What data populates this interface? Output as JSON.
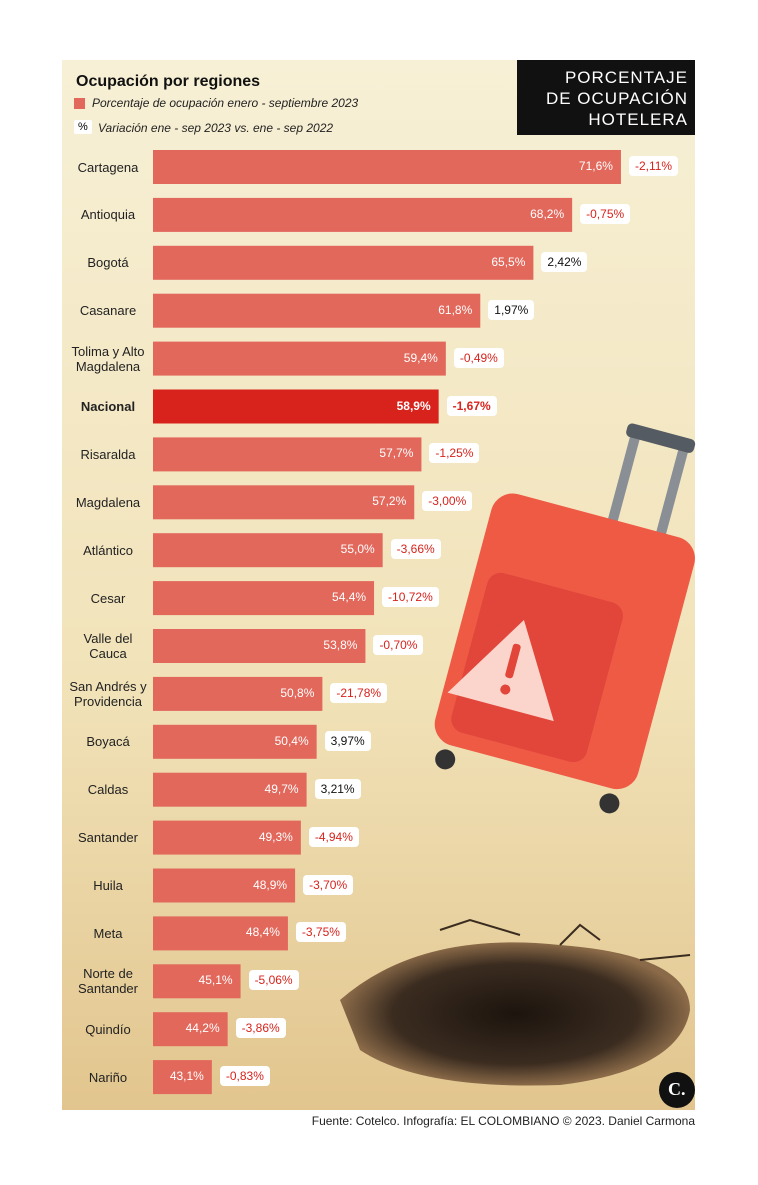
{
  "chart_data": {
    "type": "bar",
    "orientation": "horizontal",
    "title": "Ocupación por regiones",
    "heading": [
      "PORCENTAJE",
      "DE OCUPACIÓN",
      "HOTELERA"
    ],
    "legend": {
      "bar": "Porcentaje de ocupación enero - septiembre 2023",
      "badge": "%",
      "variation": "Variación ene - sep 2023 vs. ene - sep 2022"
    },
    "categories": [
      "Cartagena",
      "Antioquia",
      "Bogotá",
      "Casanare",
      "Tolima y Alto Magdalena",
      "Nacional",
      "Risaralda",
      "Magdalena",
      "Atlántico",
      "Cesar",
      "Valle del Cauca",
      "San Andrés y Providencia",
      "Boyacá",
      "Caldas",
      "Santander",
      "Huila",
      "Meta",
      "Norte de Santander",
      "Quindío",
      "Nariño"
    ],
    "values": [
      71.6,
      68.2,
      65.5,
      61.8,
      59.4,
      58.9,
      57.7,
      57.2,
      55.0,
      54.4,
      53.8,
      50.8,
      50.4,
      49.7,
      49.3,
      48.9,
      48.4,
      45.1,
      44.2,
      43.1
    ],
    "value_labels": [
      "71,6%",
      "68,2%",
      "65,5%",
      "61,8%",
      "59,4%",
      "58,9%",
      "57,7%",
      "57,2%",
      "55,0%",
      "54,4%",
      "53,8%",
      "50,8%",
      "50,4%",
      "49,7%",
      "49,3%",
      "48,9%",
      "48,4%",
      "45,1%",
      "44,2%",
      "43,1%"
    ],
    "colors": [
      "#e2685c",
      "#e2685c",
      "#e2685c",
      "#e2685c",
      "#e2685c",
      "#d8231c",
      "#e2685c",
      "#e2685c",
      "#e2685c",
      "#e2685c",
      "#e2685c",
      "#e2685c",
      "#e2685c",
      "#e2685c",
      "#e2685c",
      "#e2685c",
      "#e2685c",
      "#e2685c",
      "#e2685c",
      "#e2685c"
    ],
    "variation": {
      "values": [
        -2.11,
        -0.75,
        2.42,
        1.97,
        -0.49,
        -1.67,
        -1.25,
        -3.0,
        -3.66,
        -10.72,
        -0.7,
        -21.78,
        3.97,
        3.21,
        -4.94,
        -3.7,
        -3.75,
        -5.06,
        -3.86,
        -0.83
      ],
      "value_labels": [
        "-2,11%",
        "-0,75%",
        "2,42%",
        "1,97%",
        "-0,49%",
        "-1,67%",
        "-1,25%",
        "-3,00%",
        "-3,66%",
        "-10,72%",
        "-0,70%",
        "-21,78%",
        "3,97%",
        "3,21%",
        "-4,94%",
        "-3,70%",
        "-3,75%",
        "-5,06%",
        "-3,86%",
        "-0,83%"
      ],
      "negative_color": "#d8231c",
      "positive_color": "#111111"
    },
    "xlim": [
      39,
      72
    ],
    "source": "Fuente: Cotelco. Infografía: EL COLOMBIANO © 2023. Daniel Carmona",
    "logo": "C."
  }
}
